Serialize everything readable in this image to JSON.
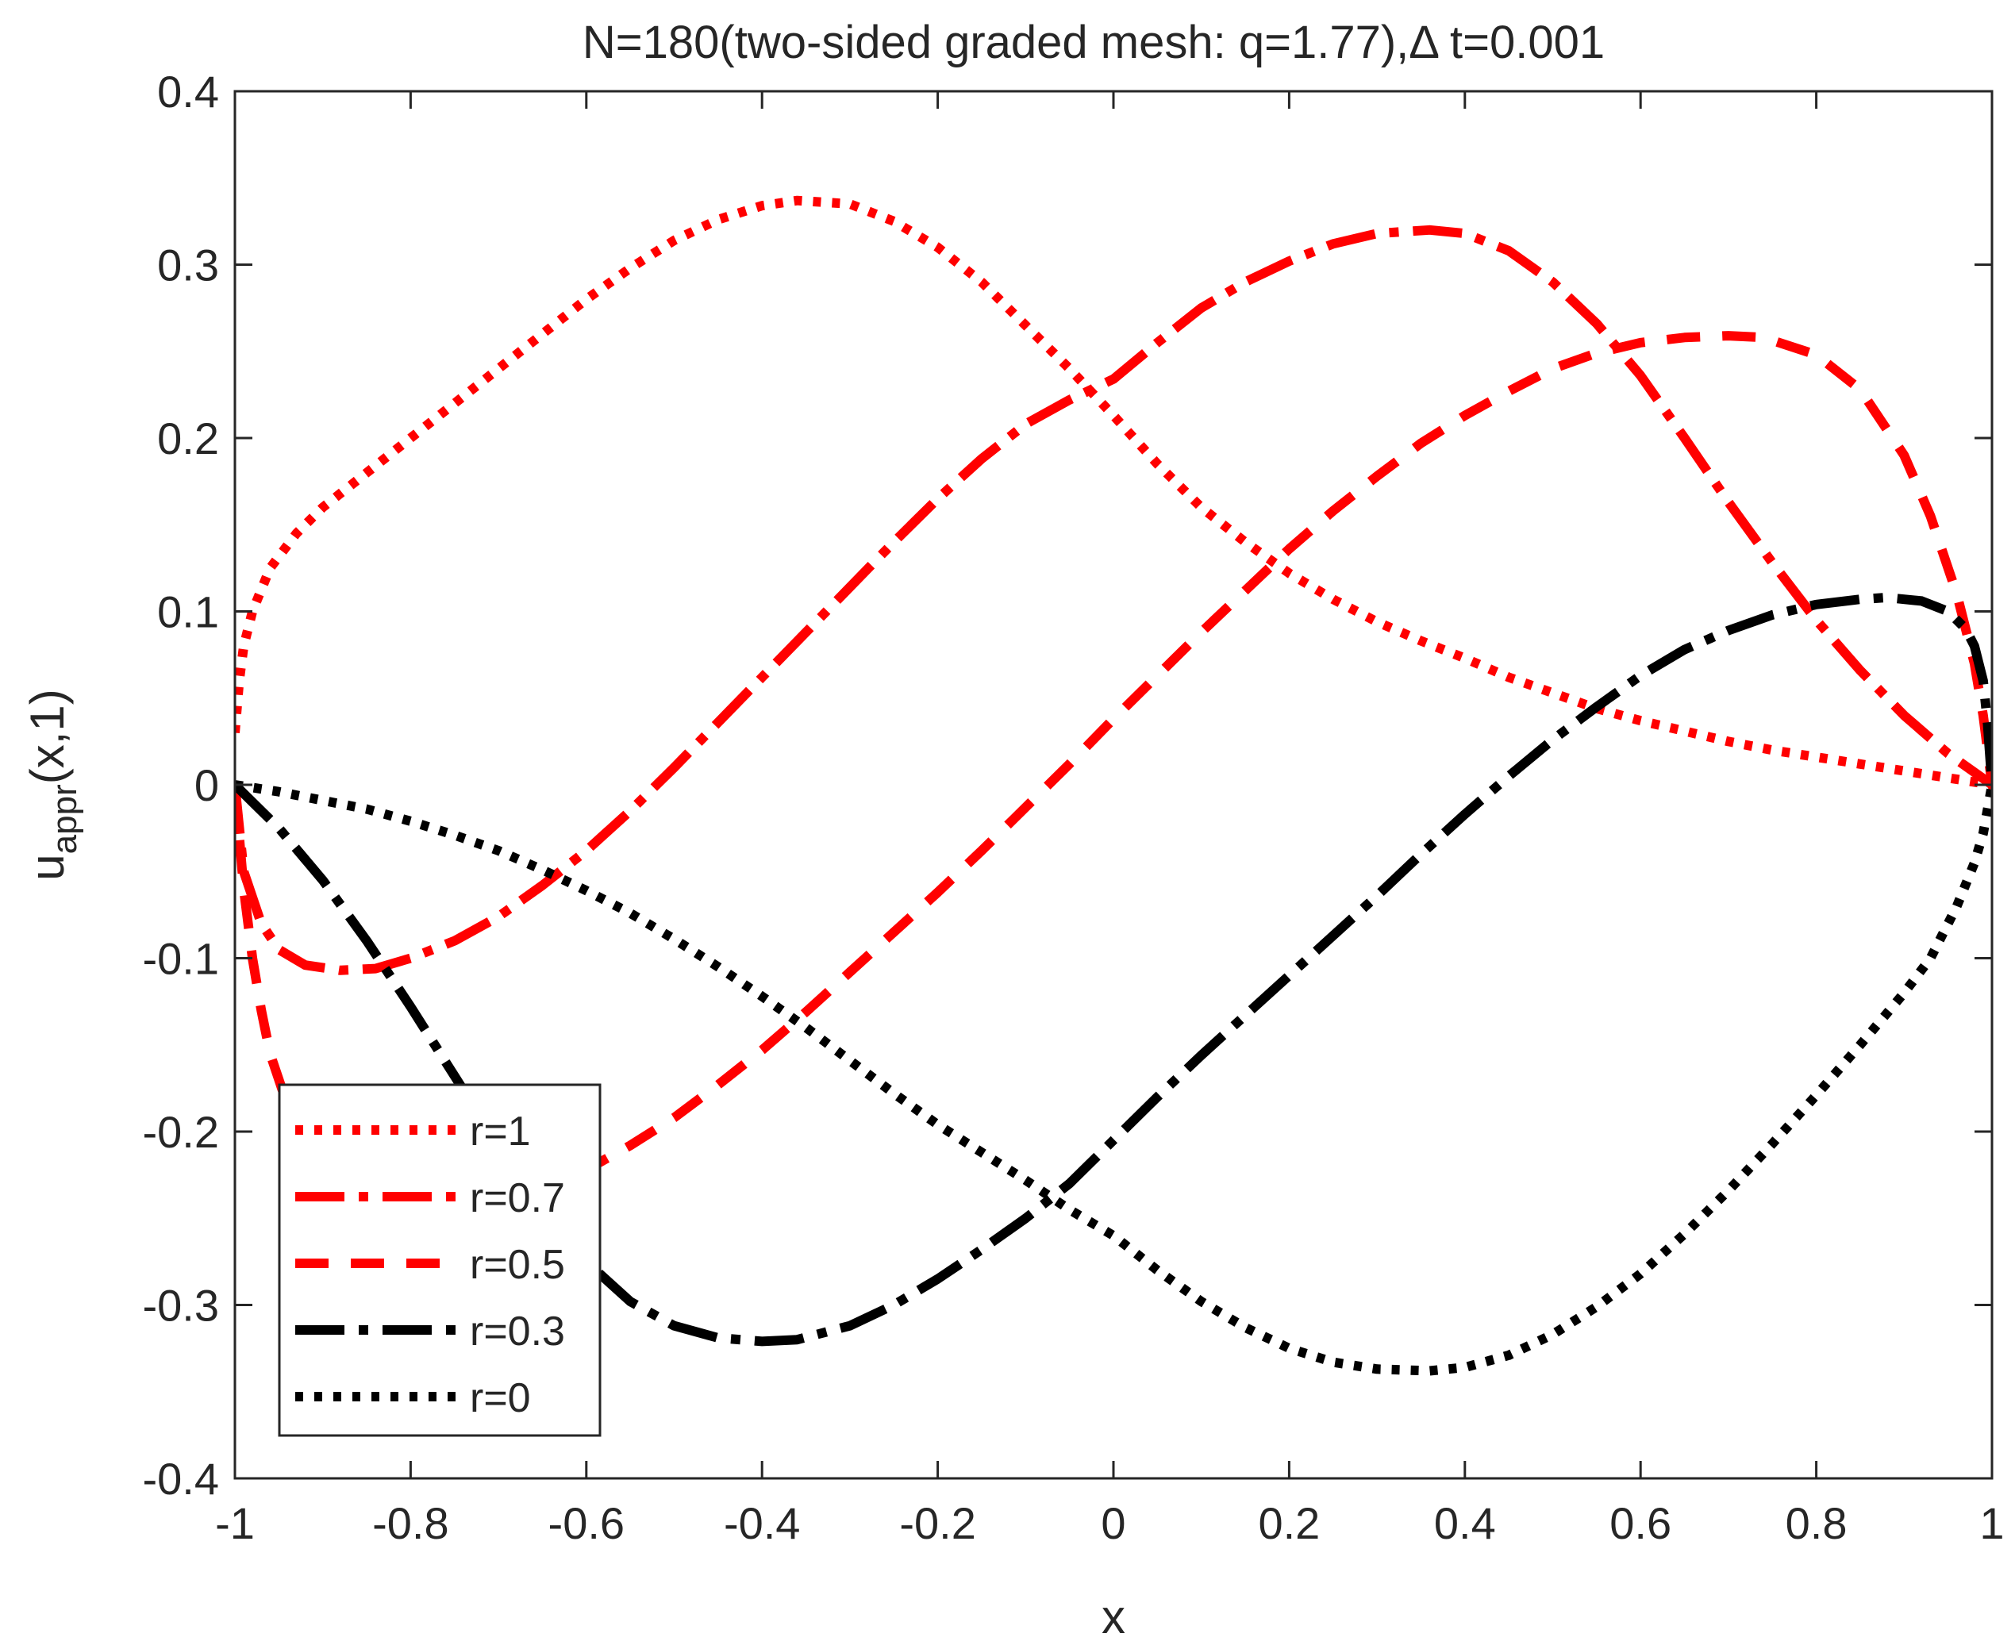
{
  "chart_data": {
    "type": "line",
    "title": "N=180(two-sided graded mesh: q=1.77),Δ t=0.001",
    "xlabel": "x",
    "ylabel_main": "u",
    "ylabel_sub": "appr",
    "ylabel_tail": "(x,1)",
    "xlim": [
      -1,
      1
    ],
    "ylim": [
      -0.4,
      0.4
    ],
    "xticks": [
      -1,
      -0.8,
      -0.6,
      -0.4,
      -0.2,
      0,
      0.2,
      0.4,
      0.6,
      0.8,
      1
    ],
    "xtick_labels": [
      "-1",
      "-0.8",
      "-0.6",
      "-0.4",
      "-0.2",
      "0",
      "0.2",
      "0.4",
      "0.6",
      "0.8",
      "1"
    ],
    "yticks": [
      -0.4,
      -0.3,
      -0.2,
      -0.1,
      0,
      0.1,
      0.2,
      0.3,
      0.4
    ],
    "ytick_labels": [
      "-0.4",
      "-0.3",
      "-0.2",
      "-0.1",
      "0",
      "0.1",
      "0.2",
      "0.3",
      "0.4"
    ],
    "grid": false,
    "legend_position": "bottom-left",
    "series": [
      {
        "name": "r=1",
        "color": "#ff0000",
        "style": "dotted",
        "x": [
          -1,
          -0.995,
          -0.99,
          -0.98,
          -0.96,
          -0.93,
          -0.9,
          -0.85,
          -0.8,
          -0.75,
          -0.7,
          -0.65,
          -0.6,
          -0.55,
          -0.5,
          -0.45,
          -0.4,
          -0.36,
          -0.3,
          -0.25,
          -0.2,
          -0.15,
          -0.1,
          -0.05,
          0,
          0.05,
          0.1,
          0.15,
          0.2,
          0.25,
          0.3,
          0.35,
          0.4,
          0.45,
          0.5,
          0.55,
          0.6,
          0.65,
          0.7,
          0.75,
          0.8,
          0.85,
          0.9,
          0.95,
          1
        ],
        "y": [
          0.03,
          0.06,
          0.08,
          0.1,
          0.125,
          0.145,
          0.16,
          0.18,
          0.2,
          0.22,
          0.24,
          0.26,
          0.28,
          0.298,
          0.314,
          0.326,
          0.334,
          0.337,
          0.335,
          0.325,
          0.31,
          0.29,
          0.265,
          0.24,
          0.213,
          0.185,
          0.16,
          0.14,
          0.122,
          0.107,
          0.094,
          0.083,
          0.073,
          0.062,
          0.053,
          0.044,
          0.037,
          0.031,
          0.025,
          0.02,
          0.016,
          0.012,
          0.008,
          0.004,
          0.0
        ]
      },
      {
        "name": "r=0.7",
        "color": "#ff0000",
        "style": "dashdot",
        "x": [
          -1,
          -0.99,
          -0.97,
          -0.95,
          -0.92,
          -0.88,
          -0.84,
          -0.8,
          -0.75,
          -0.7,
          -0.65,
          -0.6,
          -0.55,
          -0.5,
          -0.45,
          -0.4,
          -0.35,
          -0.3,
          -0.25,
          -0.2,
          -0.15,
          -0.1,
          -0.05,
          0,
          0.05,
          0.1,
          0.15,
          0.2,
          0.25,
          0.3,
          0.36,
          0.4,
          0.45,
          0.5,
          0.55,
          0.6,
          0.65,
          0.7,
          0.75,
          0.8,
          0.85,
          0.9,
          0.95,
          1
        ],
        "y": [
          0.0,
          -0.05,
          -0.08,
          -0.095,
          -0.104,
          -0.107,
          -0.106,
          -0.1,
          -0.09,
          -0.076,
          -0.058,
          -0.038,
          -0.015,
          0.01,
          0.036,
          0.062,
          0.088,
          0.114,
          0.14,
          0.165,
          0.188,
          0.208,
          0.222,
          0.234,
          0.255,
          0.275,
          0.29,
          0.302,
          0.312,
          0.318,
          0.32,
          0.318,
          0.308,
          0.29,
          0.266,
          0.236,
          0.2,
          0.163,
          0.128,
          0.095,
          0.066,
          0.04,
          0.018,
          0.0
        ]
      },
      {
        "name": "r=0.5",
        "color": "#ff0000",
        "style": "dashed",
        "x": [
          -1,
          -0.995,
          -0.99,
          -0.98,
          -0.97,
          -0.96,
          -0.94,
          -0.92,
          -0.9,
          -0.85,
          -0.8,
          -0.75,
          -0.7,
          -0.65,
          -0.6,
          -0.55,
          -0.5,
          -0.45,
          -0.4,
          -0.35,
          -0.3,
          -0.25,
          -0.2,
          -0.15,
          -0.1,
          -0.05,
          0,
          0.05,
          0.1,
          0.15,
          0.2,
          0.25,
          0.3,
          0.35,
          0.4,
          0.45,
          0.5,
          0.55,
          0.6,
          0.65,
          0.7,
          0.74,
          0.8,
          0.85,
          0.9,
          0.93,
          0.96,
          0.98,
          0.99,
          0.995,
          1
        ],
        "y": [
          0.0,
          -0.03,
          -0.06,
          -0.1,
          -0.13,
          -0.155,
          -0.185,
          -0.205,
          -0.218,
          -0.232,
          -0.242,
          -0.247,
          -0.244,
          -0.235,
          -0.222,
          -0.208,
          -0.192,
          -0.173,
          -0.153,
          -0.131,
          -0.108,
          -0.085,
          -0.062,
          -0.038,
          -0.013,
          0.012,
          0.038,
          0.063,
          0.088,
          0.112,
          0.136,
          0.158,
          0.178,
          0.197,
          0.213,
          0.227,
          0.24,
          0.249,
          0.255,
          0.258,
          0.259,
          0.258,
          0.248,
          0.228,
          0.19,
          0.155,
          0.11,
          0.07,
          0.04,
          0.02,
          0.0
        ]
      },
      {
        "name": "r=0.3",
        "color": "#000000",
        "style": "dashdot",
        "x": [
          -1,
          -0.95,
          -0.9,
          -0.85,
          -0.8,
          -0.75,
          -0.7,
          -0.65,
          -0.6,
          -0.55,
          -0.5,
          -0.45,
          -0.4,
          -0.36,
          -0.3,
          -0.25,
          -0.2,
          -0.15,
          -0.1,
          -0.05,
          0,
          0.05,
          0.1,
          0.15,
          0.2,
          0.25,
          0.3,
          0.35,
          0.4,
          0.45,
          0.5,
          0.55,
          0.6,
          0.65,
          0.7,
          0.75,
          0.8,
          0.85,
          0.88,
          0.92,
          0.95,
          0.97,
          0.98,
          0.99,
          0.995,
          1
        ],
        "y": [
          0.0,
          -0.025,
          -0.055,
          -0.09,
          -0.128,
          -0.168,
          -0.208,
          -0.245,
          -0.275,
          -0.298,
          -0.312,
          -0.319,
          -0.321,
          -0.32,
          -0.312,
          -0.3,
          -0.285,
          -0.268,
          -0.25,
          -0.23,
          -0.205,
          -0.18,
          -0.156,
          -0.133,
          -0.11,
          -0.087,
          -0.064,
          -0.04,
          -0.017,
          0.005,
          0.026,
          0.045,
          0.063,
          0.078,
          0.089,
          0.098,
          0.104,
          0.107,
          0.108,
          0.106,
          0.1,
          0.09,
          0.08,
          0.06,
          0.035,
          0.0
        ]
      },
      {
        "name": "r=0",
        "color": "#000000",
        "style": "dotted",
        "x": [
          -1,
          -0.95,
          -0.9,
          -0.85,
          -0.8,
          -0.75,
          -0.7,
          -0.65,
          -0.6,
          -0.55,
          -0.5,
          -0.45,
          -0.4,
          -0.35,
          -0.3,
          -0.25,
          -0.2,
          -0.15,
          -0.1,
          -0.05,
          0,
          0.05,
          0.1,
          0.15,
          0.2,
          0.25,
          0.3,
          0.36,
          0.4,
          0.45,
          0.5,
          0.55,
          0.6,
          0.65,
          0.7,
          0.75,
          0.8,
          0.85,
          0.9,
          0.93,
          0.96,
          0.98,
          0.99,
          0.995,
          1
        ],
        "y": [
          0.0,
          -0.004,
          -0.009,
          -0.014,
          -0.021,
          -0.029,
          -0.038,
          -0.049,
          -0.061,
          -0.074,
          -0.089,
          -0.105,
          -0.122,
          -0.14,
          -0.159,
          -0.178,
          -0.196,
          -0.212,
          -0.228,
          -0.245,
          -0.26,
          -0.28,
          -0.298,
          -0.313,
          -0.325,
          -0.333,
          -0.337,
          -0.338,
          -0.336,
          -0.329,
          -0.317,
          -0.301,
          -0.282,
          -0.259,
          -0.234,
          -0.207,
          -0.179,
          -0.15,
          -0.12,
          -0.1,
          -0.07,
          -0.045,
          -0.028,
          -0.014,
          0.0
        ]
      }
    ]
  }
}
